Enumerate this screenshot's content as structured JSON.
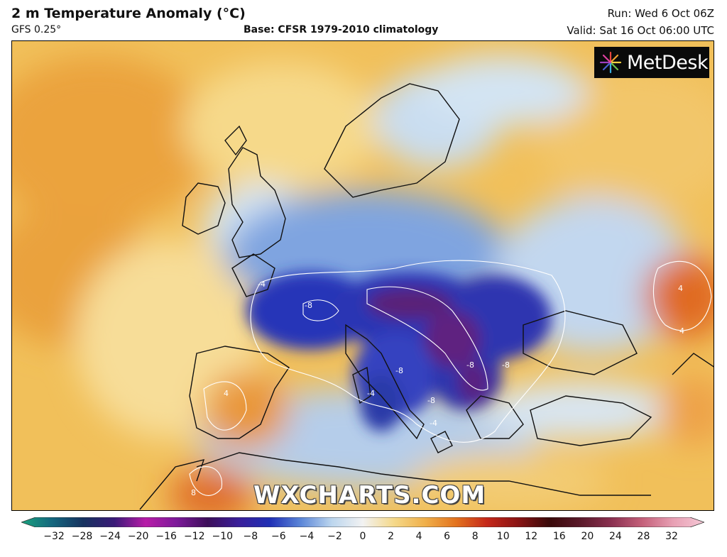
{
  "header": {
    "title": "2 m Temperature Anomaly (°C)",
    "model": "GFS 0.25°",
    "base": "Base: CFSR 1979-2010 climatology",
    "run": "Run: Wed 6 Oct 06Z",
    "valid": "Valid: Sat 16 Oct 06:00 UTC"
  },
  "logo": {
    "text": "MetDesk",
    "icon": "starburst-icon"
  },
  "watermark": "WXCHARTS.COM",
  "colorbar": {
    "ticks": [
      "−32",
      "−28",
      "−24",
      "−20",
      "−16",
      "−12",
      "−10",
      "−8",
      "−6",
      "−4",
      "−2",
      "0",
      "2",
      "4",
      "6",
      "8",
      "10",
      "12",
      "16",
      "20",
      "24",
      "28",
      "32"
    ],
    "colors": [
      "#1aa37e",
      "#14667e",
      "#16325f",
      "#3a1a78",
      "#b81ca8",
      "#7d1a9a",
      "#3d0f5a",
      "#3a1f9a",
      "#1f2fb5",
      "#5b86d8",
      "#bcd6ee",
      "#f2f2f2",
      "#f5d98a",
      "#f0b04a",
      "#e3731e",
      "#c5281a",
      "#8a1414",
      "#3a0a0a",
      "#5a1a2a",
      "#8a3050",
      "#c4607a",
      "#e8a0b4",
      "#f5c8d6"
    ]
  },
  "map_labels": {
    "contour_values": [
      "-8",
      "-8",
      "-8",
      "-8",
      "-8",
      "-4",
      "-4",
      "-4",
      "4",
      "4",
      "4",
      "8"
    ]
  }
}
